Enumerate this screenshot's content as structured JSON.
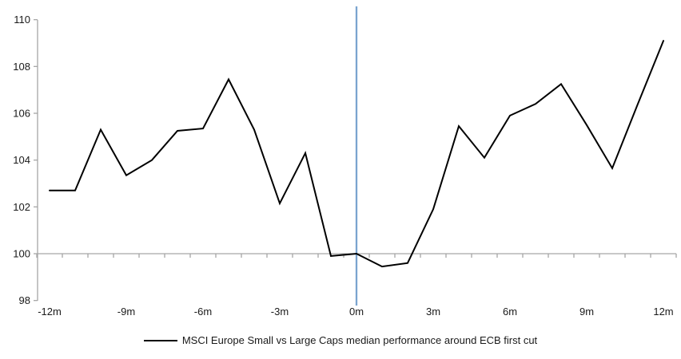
{
  "chart_data": {
    "type": "line",
    "title": "",
    "x": [
      -12,
      -11,
      -10,
      -9,
      -8,
      -7,
      -6,
      -5,
      -4,
      -3,
      -2,
      -1,
      0,
      1,
      2,
      3,
      4,
      5,
      6,
      7,
      8,
      9,
      10,
      11,
      12
    ],
    "series": [
      {
        "name": "MSCI Europe Small vs Large Caps median performance around ECB first cut",
        "color": "#000000",
        "values": [
          102.7,
          102.7,
          105.3,
          103.35,
          104.0,
          105.25,
          105.35,
          107.45,
          105.3,
          102.15,
          104.3,
          99.9,
          100.0,
          99.45,
          99.6,
          101.9,
          105.45,
          104.1,
          105.9,
          106.4,
          107.25,
          105.5,
          103.65,
          106.4,
          109.1
        ]
      }
    ],
    "xlabel": "",
    "ylabel": "",
    "ylim": [
      98,
      110
    ],
    "y_ticks": [
      "98",
      "100",
      "102",
      "104",
      "106",
      "108",
      "110"
    ],
    "x_tick_values": [
      -12,
      -9,
      -6,
      -3,
      0,
      3,
      6,
      9,
      12
    ],
    "x_tick_labels": [
      "-12m",
      "-9m",
      "-6m",
      "-3m",
      "0m",
      "3m",
      "6m",
      "9m",
      "12m"
    ],
    "baseline_value": 100,
    "grid": "baseline-only",
    "event_line": {
      "x": 0,
      "color": "#7aa4cf"
    },
    "axis_color": "#a6a6a6",
    "legend_position": "bottom-center"
  }
}
